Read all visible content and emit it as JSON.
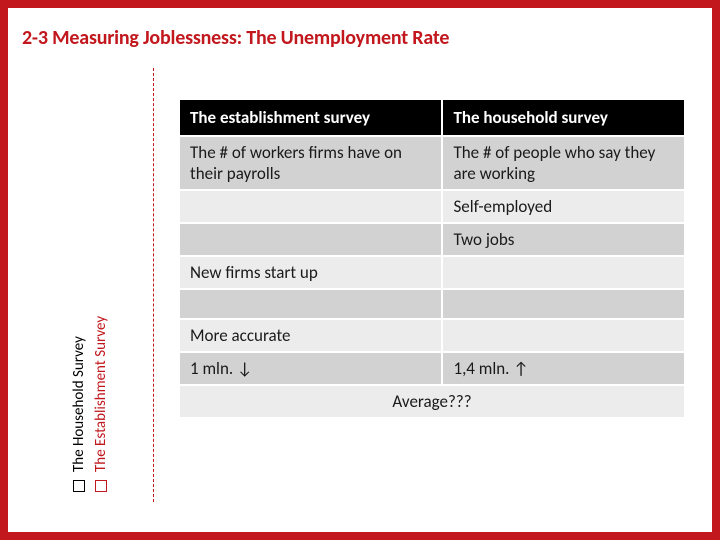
{
  "title": "2-3 Measuring Joblessness: The Unemployment Rate",
  "sidebar": {
    "item1": "The Household Survey",
    "item2": "The Establishment Survey"
  },
  "table": {
    "headers": {
      "col1": "The establishment survey",
      "col2": "The household survey"
    },
    "r1c1": "The # of workers firms have on their payrolls",
    "r1c2": "The # of people who say they are working",
    "r2c1": "",
    "r2c2": "Self-employed",
    "r3c1": "",
    "r3c2": "Two jobs",
    "r4c1": "New firms start up",
    "r4c2": "",
    "r5c1": "",
    "r5c2": "",
    "r6c1": "More accurate",
    "r6c2": "",
    "r7c1": "1 mln. ↓",
    "r7c2": "1,4 mln. ↑",
    "r8merged": "Average???"
  },
  "colors": {
    "brand_red": "#c1171d",
    "row_light": "#ececec",
    "row_dark": "#d2d2d2",
    "header_bg": "#000000"
  }
}
